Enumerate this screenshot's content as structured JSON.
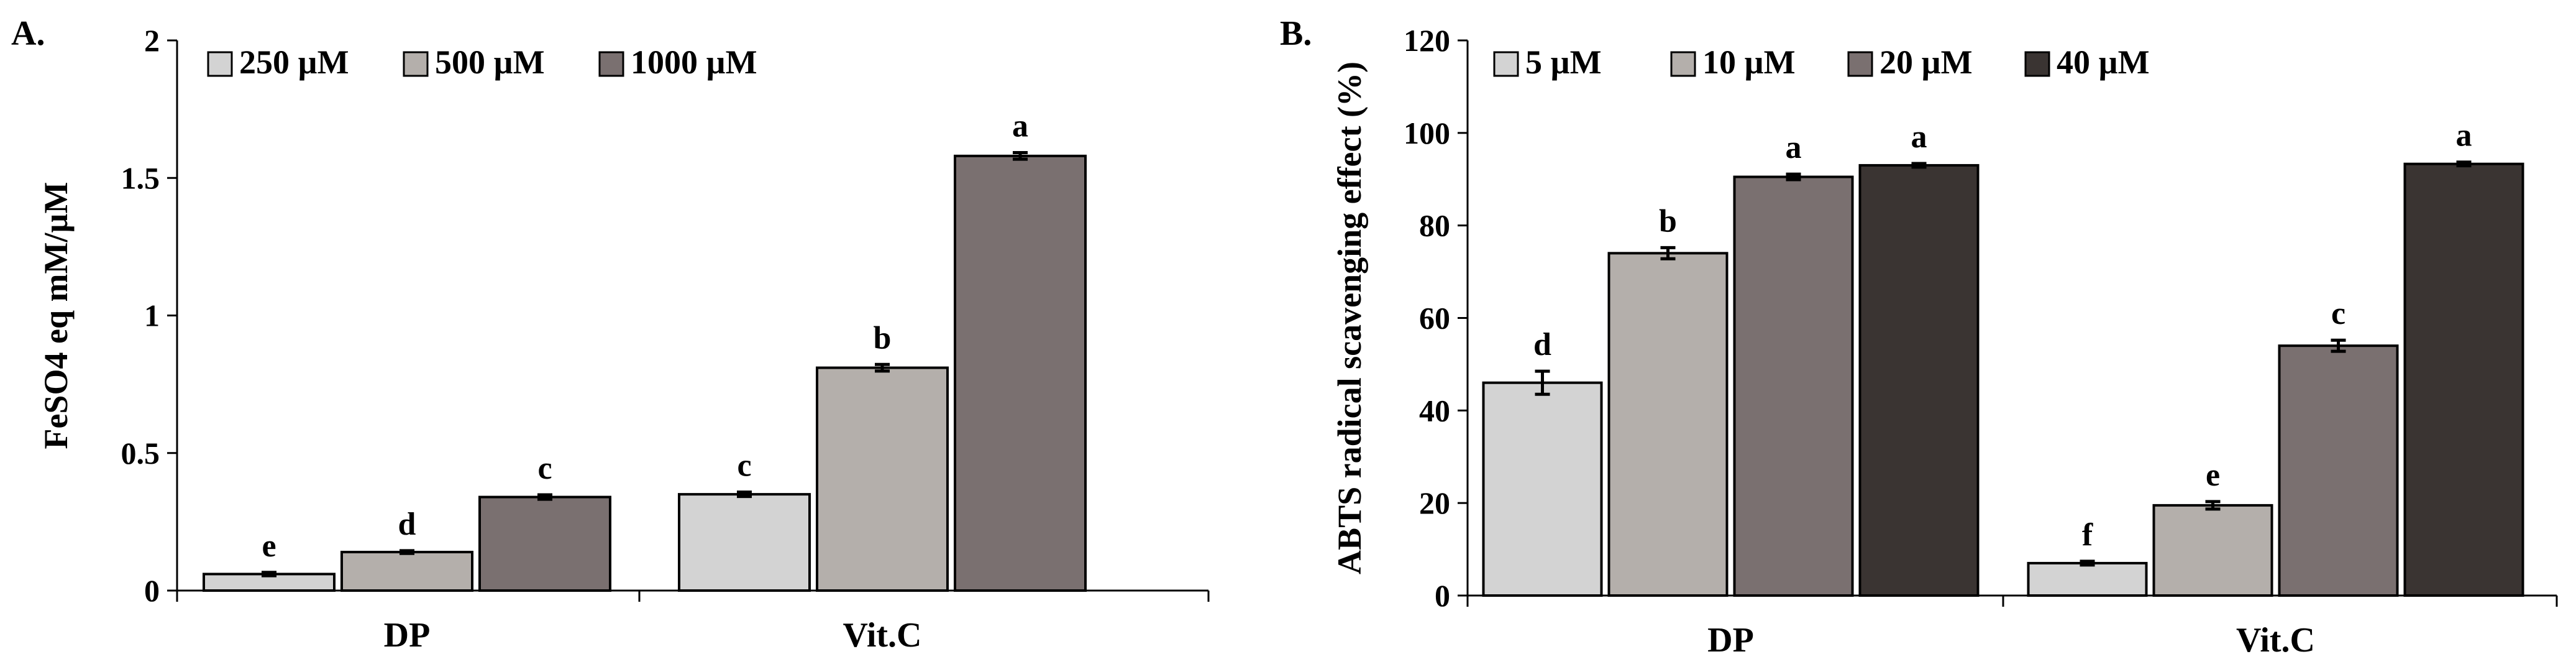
{
  "chart_data": [
    {
      "type": "bar",
      "panel_label": "A.",
      "title": "",
      "xlabel": "",
      "ylabel": "FeSO4 eq mM/µM",
      "ylim": [
        0,
        2
      ],
      "yticks": [
        0,
        0.5,
        1,
        1.5,
        2
      ],
      "ytick_labels": [
        "0",
        "0.5",
        "1",
        "1.5",
        "2"
      ],
      "grid": false,
      "legend_position": "top-left",
      "categories": [
        "DP",
        "Vit.C"
      ],
      "series": [
        {
          "name": "250 µM",
          "color": "#d3d3d3",
          "values": [
            0.06,
            0.35
          ],
          "errors": [
            0.006,
            0.008
          ],
          "labels": [
            "e",
            "c"
          ]
        },
        {
          "name": "500 µM",
          "color": "#b4afab",
          "values": [
            0.14,
            0.81
          ],
          "errors": [
            0.005,
            0.012
          ],
          "labels": [
            "d",
            "b"
          ]
        },
        {
          "name": "1000 µM",
          "color": "#7a7070",
          "values": [
            0.34,
            1.58
          ],
          "errors": [
            0.008,
            0.012
          ],
          "labels": [
            "c",
            "a"
          ]
        }
      ]
    },
    {
      "type": "bar",
      "panel_label": "B.",
      "title": "",
      "xlabel": "",
      "ylabel": "ABTS radical scavenging effect (%)",
      "ylim": [
        0,
        120
      ],
      "yticks": [
        0,
        20,
        40,
        60,
        80,
        100,
        120
      ],
      "ytick_labels": [
        "0",
        "20",
        "40",
        "60",
        "80",
        "100",
        "120"
      ],
      "grid": false,
      "legend_position": "top-left",
      "categories": [
        "DP",
        "Vit.C"
      ],
      "series": [
        {
          "name": "5 µM",
          "color": "#d3d3d3",
          "values": [
            46,
            7
          ],
          "errors": [
            2.5,
            0.4
          ],
          "labels": [
            "d",
            "f"
          ]
        },
        {
          "name": "10 µM",
          "color": "#b4afab",
          "values": [
            74,
            19.5
          ],
          "errors": [
            1.2,
            0.8
          ],
          "labels": [
            "b",
            "e"
          ]
        },
        {
          "name": "20 µM",
          "color": "#7a7070",
          "values": [
            90.5,
            54
          ],
          "errors": [
            0.6,
            1.2
          ],
          "labels": [
            "a",
            "c"
          ]
        },
        {
          "name": "40 µM",
          "color": "#3a3432",
          "values": [
            93,
            93.3
          ],
          "errors": [
            0.4,
            0.4
          ],
          "labels": [
            "a",
            "a"
          ]
        }
      ]
    }
  ]
}
